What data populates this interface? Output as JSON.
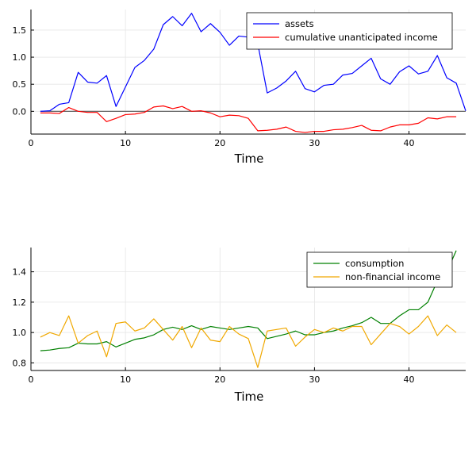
{
  "chart_data": [
    {
      "type": "line",
      "title": "",
      "xlabel": "Time",
      "ylabel": "",
      "xlim": [
        0,
        46
      ],
      "ylim": [
        -0.42,
        1.88
      ],
      "xticks": [
        0,
        10,
        20,
        30,
        40
      ],
      "yticks": [
        0.0,
        0.5,
        1.0,
        1.5
      ],
      "ytick_labels": [
        "0.0",
        "0.5",
        "1.0",
        "1.5"
      ],
      "grid": true,
      "legend": "top-right",
      "hline": 0,
      "series": [
        {
          "name": "assets",
          "color": "#0000ff",
          "x": [
            1,
            2,
            3,
            4,
            5,
            6,
            7,
            8,
            9,
            10,
            11,
            12,
            13,
            14,
            15,
            16,
            17,
            18,
            19,
            20,
            21,
            22,
            23,
            24,
            25,
            26,
            27,
            28,
            29,
            30,
            31,
            32,
            33,
            34,
            35,
            36,
            37,
            38,
            39,
            40,
            41,
            42,
            43,
            44,
            45,
            46
          ],
          "values": [
            0.0,
            0.01,
            0.13,
            0.16,
            0.72,
            0.54,
            0.52,
            0.66,
            0.09,
            0.45,
            0.81,
            0.94,
            1.15,
            1.6,
            1.75,
            1.58,
            1.81,
            1.47,
            1.62,
            1.46,
            1.22,
            1.39,
            1.37,
            1.25,
            0.34,
            0.43,
            0.56,
            0.74,
            0.42,
            0.36,
            0.48,
            0.5,
            0.67,
            0.7,
            0.84,
            0.98,
            0.6,
            0.5,
            0.73,
            0.84,
            0.69,
            0.74,
            1.03,
            0.62,
            0.52,
            0.01
          ]
        },
        {
          "name": "cumulative unanticipated income",
          "color": "#ff0000",
          "x": [
            1,
            2,
            3,
            4,
            5,
            6,
            7,
            8,
            9,
            10,
            11,
            12,
            13,
            14,
            15,
            16,
            17,
            18,
            19,
            20,
            21,
            22,
            23,
            24,
            25,
            26,
            27,
            28,
            29,
            30,
            31,
            32,
            33,
            34,
            35,
            36,
            37,
            38,
            39,
            40,
            41,
            42,
            43,
            44,
            45
          ],
          "values": [
            -0.03,
            -0.03,
            -0.04,
            0.07,
            0.0,
            -0.02,
            -0.02,
            -0.19,
            -0.13,
            -0.06,
            -0.05,
            -0.02,
            0.08,
            0.1,
            0.05,
            0.09,
            0.0,
            0.01,
            -0.03,
            -0.1,
            -0.07,
            -0.08,
            -0.13,
            -0.36,
            -0.35,
            -0.33,
            -0.29,
            -0.37,
            -0.39,
            -0.37,
            -0.37,
            -0.34,
            -0.33,
            -0.3,
            -0.26,
            -0.35,
            -0.36,
            -0.29,
            -0.25,
            -0.25,
            -0.22,
            -0.12,
            -0.14,
            -0.1,
            -0.1
          ]
        }
      ]
    },
    {
      "type": "line",
      "title": "",
      "xlabel": "Time",
      "ylabel": "",
      "xlim": [
        0,
        46
      ],
      "ylim": [
        0.75,
        1.56
      ],
      "xticks": [
        0,
        10,
        20,
        30,
        40
      ],
      "yticks": [
        0.8,
        1.0,
        1.2,
        1.4
      ],
      "ytick_labels": [
        "0.8",
        "1.0",
        "1.2",
        "1.4"
      ],
      "grid": true,
      "legend": "top-right",
      "series": [
        {
          "name": "consumption",
          "color": "#008000",
          "x": [
            1,
            2,
            3,
            4,
            5,
            6,
            7,
            8,
            9,
            10,
            11,
            12,
            13,
            14,
            15,
            16,
            17,
            18,
            19,
            20,
            21,
            22,
            23,
            24,
            25,
            26,
            27,
            28,
            29,
            30,
            31,
            32,
            33,
            34,
            35,
            36,
            37,
            38,
            39,
            40,
            41,
            42,
            43,
            44,
            45
          ],
          "values": [
            0.88,
            0.885,
            0.895,
            0.9,
            0.93,
            0.925,
            0.925,
            0.94,
            0.905,
            0.93,
            0.955,
            0.965,
            0.985,
            1.02,
            1.035,
            1.02,
            1.045,
            1.02,
            1.04,
            1.03,
            1.02,
            1.03,
            1.04,
            1.03,
            0.96,
            0.975,
            0.99,
            1.01,
            0.985,
            0.985,
            1.0,
            1.01,
            1.03,
            1.045,
            1.065,
            1.1,
            1.06,
            1.06,
            1.11,
            1.15,
            1.15,
            1.2,
            1.34,
            1.4,
            1.54
          ]
        },
        {
          "name": "non-financial income",
          "color": "#f0a800",
          "x": [
            1,
            2,
            3,
            4,
            5,
            6,
            7,
            8,
            9,
            10,
            11,
            12,
            13,
            14,
            15,
            16,
            17,
            18,
            19,
            20,
            21,
            22,
            23,
            24,
            25,
            26,
            27,
            28,
            29,
            30,
            31,
            32,
            33,
            34,
            35,
            36,
            37,
            38,
            39,
            40,
            41,
            42,
            43,
            44,
            45
          ],
          "values": [
            0.97,
            1.0,
            0.98,
            1.11,
            0.93,
            0.98,
            1.01,
            0.84,
            1.06,
            1.07,
            1.01,
            1.03,
            1.09,
            1.02,
            0.95,
            1.04,
            0.9,
            1.03,
            0.95,
            0.94,
            1.04,
            0.99,
            0.96,
            0.77,
            1.01,
            1.02,
            1.03,
            0.91,
            0.97,
            1.02,
            1.0,
            1.03,
            1.01,
            1.04,
            1.04,
            0.92,
            0.99,
            1.06,
            1.04,
            0.99,
            1.04,
            1.11,
            0.98,
            1.05,
            1.0
          ]
        }
      ]
    }
  ]
}
